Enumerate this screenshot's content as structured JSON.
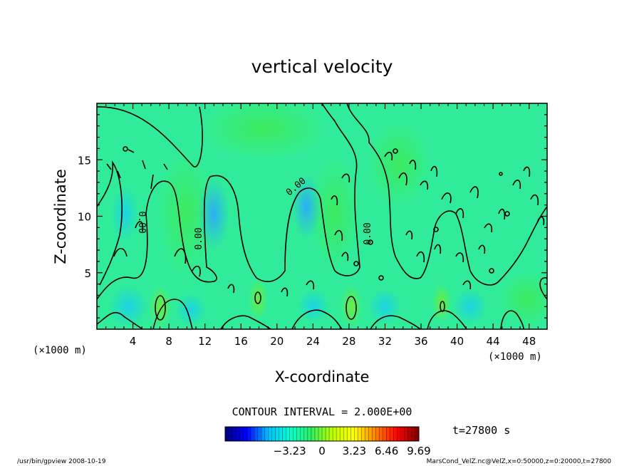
{
  "chart_data": {
    "type": "heatmap",
    "title": "vertical velocity",
    "xlabel": "X-coordinate",
    "ylabel": "Z-coordinate",
    "x_unit": "(×1000 m)",
    "y_unit": "(×1000 m)",
    "xlim": [
      0,
      50
    ],
    "ylim": [
      0,
      20
    ],
    "x_ticks": [
      "4",
      "8",
      "12",
      "16",
      "20",
      "24",
      "28",
      "32",
      "36",
      "40",
      "44",
      "48"
    ],
    "y_ticks": [
      "5",
      "10",
      "15"
    ],
    "contour_interval_label": "CONTOUR INTERVAL = 2.000E+00",
    "contour_labels": [
      "0.00",
      "0.00",
      "0.00",
      "0.00"
    ],
    "colorbar": {
      "min": -9.69,
      "max": 9.69,
      "ticks": [
        "-3.23",
        "0",
        "3.23",
        "6.46",
        "9.69"
      ],
      "colors": [
        "#000080",
        "#0000ff",
        "#00c0ff",
        "#00ffd0",
        "#30f060",
        "#c0ff00",
        "#ffff00",
        "#ff8000",
        "#ff0000",
        "#800000"
      ]
    },
    "time_label": "t=27800 s",
    "grid": false
  },
  "footer": {
    "left": "/usr/bin/gpview  2008-10-19",
    "right": "MarsCond_VelZ.nc@VelZ,x=0:50000,z=0:20000,t=27800"
  }
}
